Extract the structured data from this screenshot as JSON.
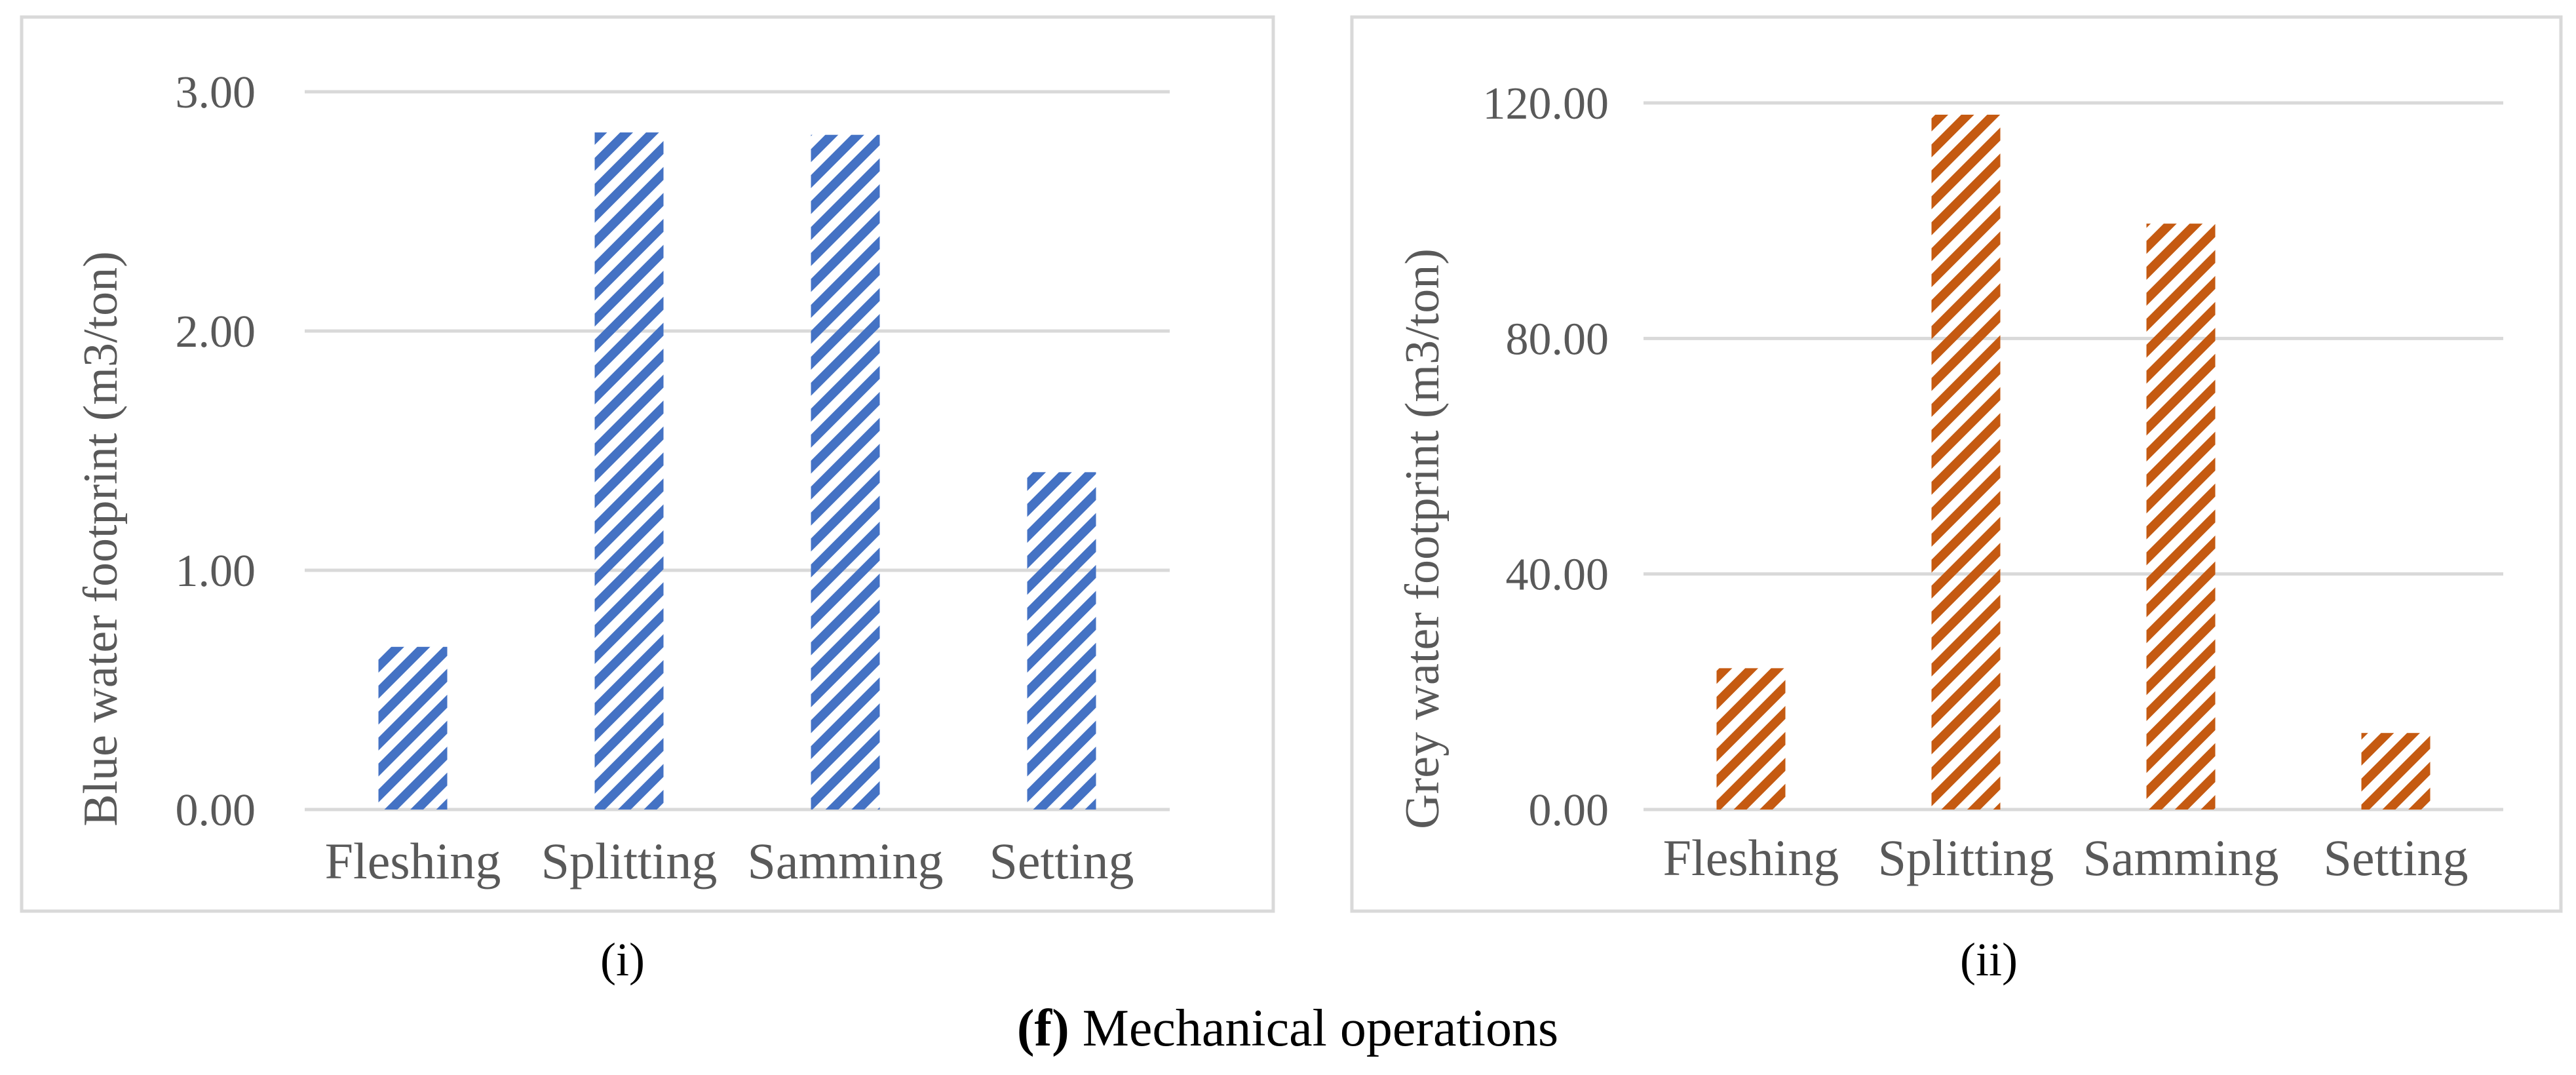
{
  "figure_caption": {
    "letter": "(f)",
    "text": " Mechanical operations"
  },
  "chart_data": [
    {
      "type": "bar",
      "panel_label": "(i)",
      "title": "",
      "xlabel": "",
      "ylabel": "Blue water footprint (m3/ton)",
      "categories": [
        "Fleshing",
        "Splitting",
        "Samming",
        "Setting"
      ],
      "values": [
        0.68,
        2.83,
        2.82,
        1.41
      ],
      "ylim": [
        0,
        3
      ],
      "yticks": [
        0,
        1,
        2,
        3
      ],
      "ytick_labels": [
        "0.00",
        "1.00",
        "2.00",
        "3.00"
      ],
      "grid": true,
      "legend": "none",
      "pattern": "diagonal-hatch",
      "color": "#4472c4"
    },
    {
      "type": "bar",
      "panel_label": "(ii)",
      "title": "",
      "xlabel": "",
      "ylabel": "Grey water footprint (m3/ton)",
      "categories": [
        "Fleshing",
        "Splitting",
        "Samming",
        "Setting"
      ],
      "values": [
        24.0,
        118.0,
        99.5,
        13.0
      ],
      "ylim": [
        0,
        120
      ],
      "yticks": [
        0,
        40,
        80,
        120
      ],
      "ytick_labels": [
        "0.00",
        "40.00",
        "80.00",
        "120.00"
      ],
      "grid": true,
      "legend": "none",
      "pattern": "diagonal-hatch",
      "color": "#c55a11"
    }
  ]
}
